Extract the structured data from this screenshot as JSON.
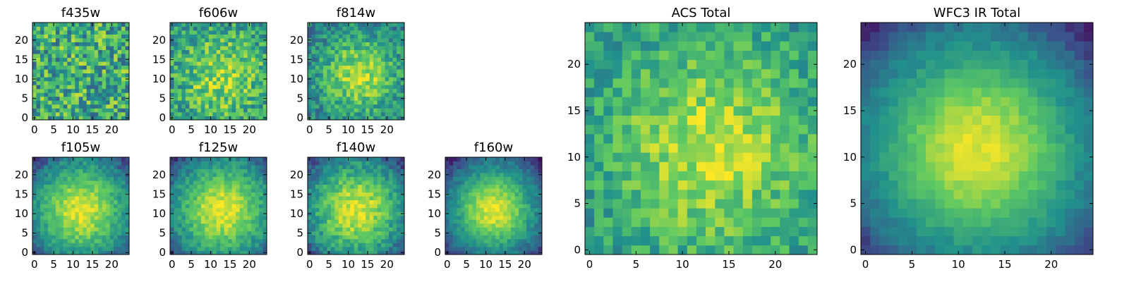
{
  "figure": {
    "colormap": [
      "#440154",
      "#3b528b",
      "#21918c",
      "#5ec962",
      "#fde725"
    ],
    "colormap_name": "viridis"
  },
  "chart_data": [
    {
      "type": "heatmap",
      "title": "f435w",
      "grid_size": 25,
      "xlim": [
        0,
        24
      ],
      "ylim": [
        0,
        24
      ],
      "xticks": [
        0,
        5,
        10,
        15,
        20
      ],
      "yticks": [
        0,
        5,
        10,
        15,
        20
      ],
      "xtick_labels": [
        "0",
        "5",
        "10",
        "15",
        "20"
      ],
      "ytick_labels": [
        "0",
        "5",
        "10",
        "15",
        "20"
      ],
      "center": [
        12,
        11
      ],
      "peak": 0.62,
      "background": 0.6,
      "falloff_sigma": 9,
      "noise": 0.3
    },
    {
      "type": "heatmap",
      "title": "f606w",
      "grid_size": 25,
      "xlim": [
        0,
        24
      ],
      "ylim": [
        0,
        24
      ],
      "xticks": [
        0,
        5,
        10,
        15,
        20
      ],
      "yticks": [
        0,
        5,
        10,
        15,
        20
      ],
      "xtick_labels": [
        "0",
        "5",
        "10",
        "15",
        "20"
      ],
      "ytick_labels": [
        "0",
        "5",
        "10",
        "15",
        "20"
      ],
      "center": [
        13,
        11
      ],
      "peak": 0.85,
      "background": 0.5,
      "falloff_sigma": 8,
      "noise": 0.22
    },
    {
      "type": "heatmap",
      "title": "f814w",
      "grid_size": 25,
      "xlim": [
        0,
        24
      ],
      "ylim": [
        0,
        24
      ],
      "xticks": [
        0,
        5,
        10,
        15,
        20
      ],
      "yticks": [
        0,
        5,
        10,
        15,
        20
      ],
      "xtick_labels": [
        "0",
        "5",
        "10",
        "15",
        "20"
      ],
      "ytick_labels": [
        "0",
        "5",
        "10",
        "15",
        "20"
      ],
      "center": [
        13,
        11
      ],
      "peak": 0.88,
      "background": 0.42,
      "falloff_sigma": 7,
      "noise": 0.18
    },
    {
      "type": "heatmap",
      "title": "f105w",
      "grid_size": 25,
      "xlim": [
        0,
        24
      ],
      "ylim": [
        0,
        24
      ],
      "xticks": [
        0,
        5,
        10,
        15,
        20
      ],
      "yticks": [
        0,
        5,
        10,
        15,
        20
      ],
      "xtick_labels": [
        "0",
        "5",
        "10",
        "15",
        "20"
      ],
      "ytick_labels": [
        "0",
        "5",
        "10",
        "15",
        "20"
      ],
      "center": [
        12,
        11
      ],
      "peak": 0.95,
      "background": 0.3,
      "falloff_sigma": 8,
      "noise": 0.1
    },
    {
      "type": "heatmap",
      "title": "f125w",
      "grid_size": 25,
      "xlim": [
        0,
        24
      ],
      "ylim": [
        0,
        24
      ],
      "xticks": [
        0,
        5,
        10,
        15,
        20
      ],
      "yticks": [
        0,
        5,
        10,
        15,
        20
      ],
      "xtick_labels": [
        "0",
        "5",
        "10",
        "15",
        "20"
      ],
      "ytick_labels": [
        "0",
        "5",
        "10",
        "15",
        "20"
      ],
      "center": [
        13,
        11
      ],
      "peak": 0.96,
      "background": 0.32,
      "falloff_sigma": 8,
      "noise": 0.1
    },
    {
      "type": "heatmap",
      "title": "f140w",
      "grid_size": 25,
      "xlim": [
        0,
        24
      ],
      "ylim": [
        0,
        24
      ],
      "xticks": [
        0,
        5,
        10,
        15,
        20
      ],
      "yticks": [
        0,
        5,
        10,
        15,
        20
      ],
      "xtick_labels": [
        "0",
        "5",
        "10",
        "15",
        "20"
      ],
      "ytick_labels": [
        "0",
        "5",
        "10",
        "15",
        "20"
      ],
      "center": [
        12,
        11
      ],
      "peak": 0.95,
      "background": 0.3,
      "falloff_sigma": 8,
      "noise": 0.12
    },
    {
      "type": "heatmap",
      "title": "f160w",
      "grid_size": 25,
      "xlim": [
        0,
        24
      ],
      "ylim": [
        0,
        24
      ],
      "xticks": [
        0,
        5,
        10,
        15,
        20
      ],
      "yticks": [
        0,
        5,
        10,
        15,
        20
      ],
      "xtick_labels": [
        "0",
        "5",
        "10",
        "15",
        "20"
      ],
      "ytick_labels": [
        "0",
        "5",
        "10",
        "15",
        "20"
      ],
      "center": [
        12,
        11
      ],
      "peak": 0.95,
      "background": 0.22,
      "falloff_sigma": 7.5,
      "noise": 0.08
    },
    {
      "type": "heatmap",
      "title": "ACS Total",
      "grid_size": 25,
      "xlim": [
        0,
        24
      ],
      "ylim": [
        0,
        24
      ],
      "xticks": [
        0,
        5,
        10,
        15,
        20
      ],
      "yticks": [
        0,
        5,
        10,
        15,
        20
      ],
      "xtick_labels": [
        "0",
        "5",
        "10",
        "15",
        "20"
      ],
      "ytick_labels": [
        "0",
        "5",
        "10",
        "15",
        "20"
      ],
      "center": [
        13,
        11
      ],
      "peak": 0.9,
      "background": 0.5,
      "falloff_sigma": 8,
      "noise": 0.16
    },
    {
      "type": "heatmap",
      "title": "WFC3 IR Total",
      "grid_size": 25,
      "xlim": [
        0,
        24
      ],
      "ylim": [
        0,
        24
      ],
      "xticks": [
        0,
        5,
        10,
        15,
        20
      ],
      "yticks": [
        0,
        5,
        10,
        15,
        20
      ],
      "xtick_labels": [
        "0",
        "5",
        "10",
        "15",
        "20"
      ],
      "ytick_labels": [
        "0",
        "5",
        "10",
        "15",
        "20"
      ],
      "center": [
        12,
        11
      ],
      "peak": 0.95,
      "background": 0.22,
      "falloff_sigma": 8,
      "noise": 0.05
    }
  ]
}
